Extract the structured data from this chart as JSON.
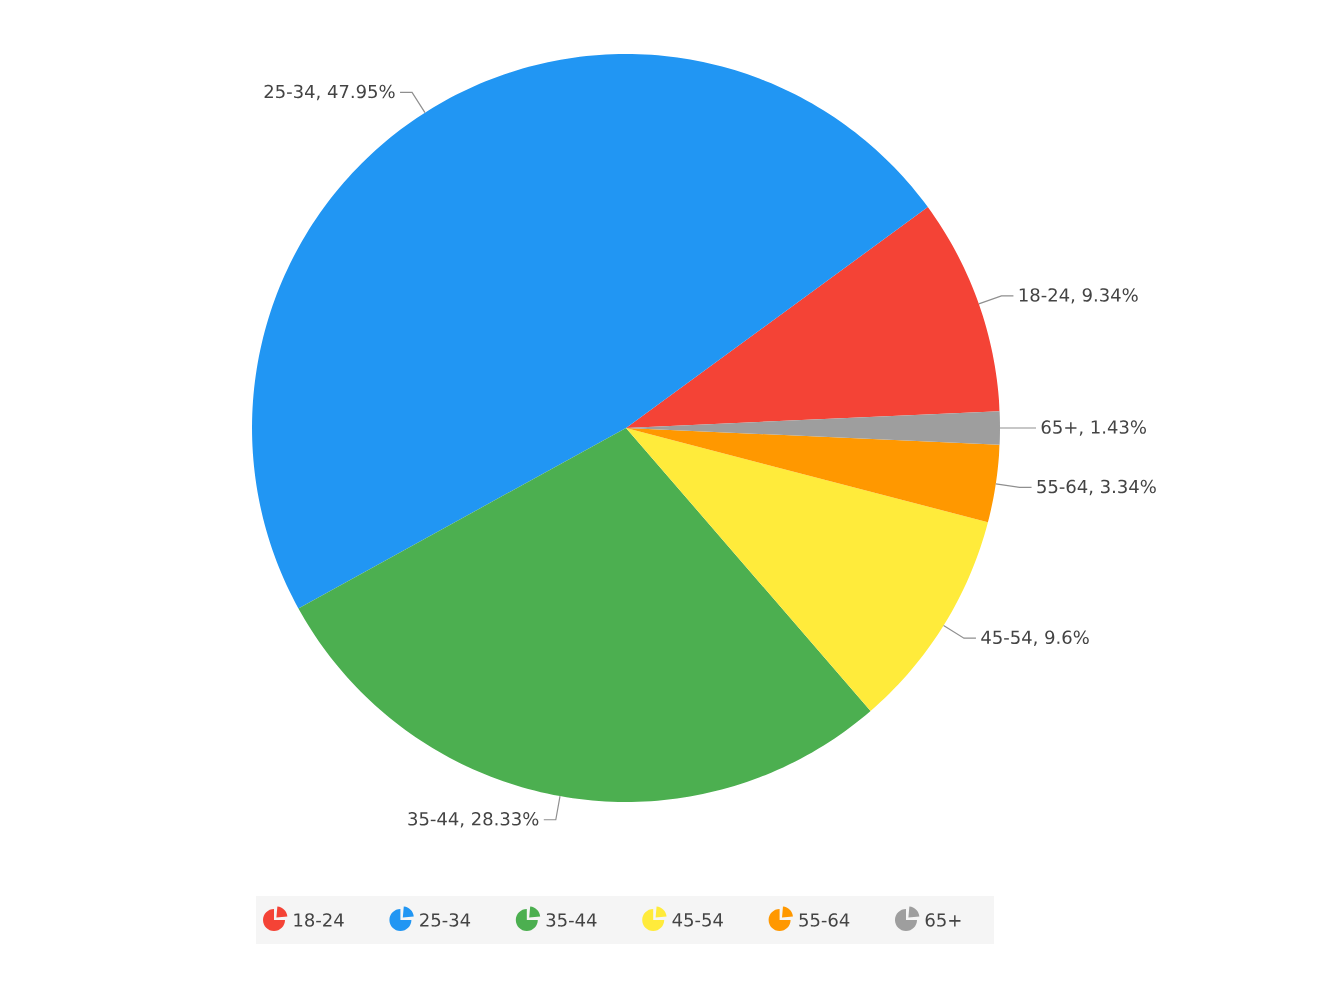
{
  "chart_data": {
    "type": "pie",
    "categories": [
      "18-24",
      "25-34",
      "35-44",
      "45-54",
      "55-64",
      "65+"
    ],
    "values": [
      9.34,
      47.95,
      28.33,
      9.6,
      3.34,
      1.43
    ],
    "value_labels": [
      "18-24, 9.34%",
      "25-34, 47.95%",
      "35-44, 28.33%",
      "45-54, 9.6%",
      "55-64, 3.34%",
      "65+, 1.43%"
    ],
    "colors": [
      "#f44336",
      "#2196f3",
      "#4caf50",
      "#ffeb3b",
      "#ff9800",
      "#9e9e9e"
    ],
    "legend": "bottom"
  }
}
